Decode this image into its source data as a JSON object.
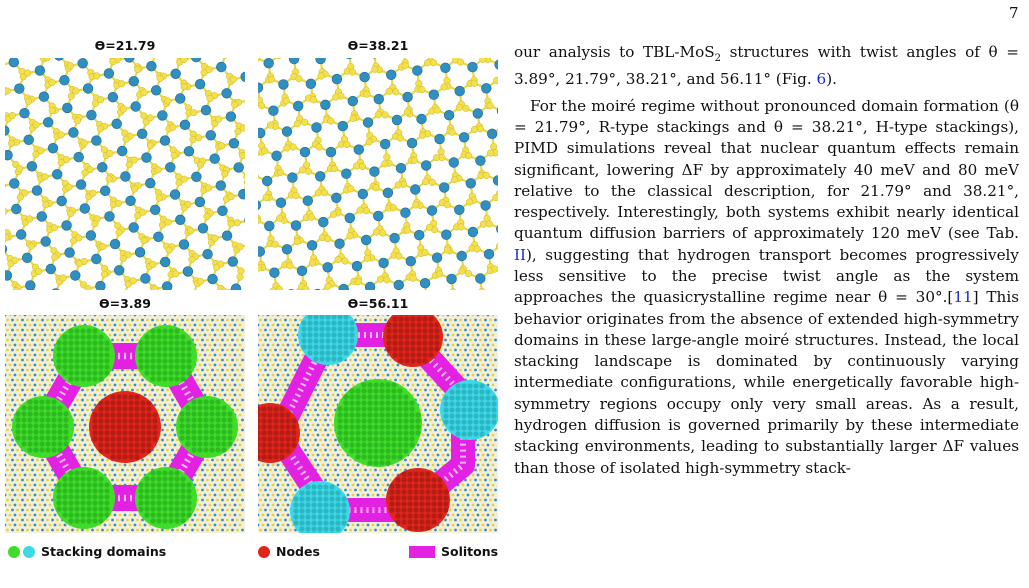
{
  "page_number": "7",
  "figure": {
    "panels": [
      {
        "title": "ϴ=21.79"
      },
      {
        "title": "ϴ=38.21"
      },
      {
        "title": "ϴ=3.89"
      },
      {
        "title": "ϴ=56.11"
      }
    ],
    "legend": {
      "stacking": "Stacking domains",
      "nodes": "Nodes",
      "solitons": "Solitons"
    },
    "colors": {
      "molybdenum": "#2f8fc0",
      "sulfur": "#f4e04a",
      "stacking_green": "#3fdc2a",
      "stacking_cyan": "#3ed8e6",
      "nodes_red": "#e0261b",
      "solitons_magenta": "#e221e2"
    }
  },
  "text": {
    "p1_a": "our analysis to TBL-MoS",
    "p1_sub": "2",
    "p1_b": " structures with twist angles of θ = 3.89°, 21.79°, 38.21°, and 56.11° (Fig. ",
    "p1_ref": "6",
    "p1_c": ").",
    "p2_a": "For the moiré regime without pronounced domain formation (θ = 21.79°, R-type stackings and θ = 38.21°, H-type stackings), PIMD simulations reveal that nuclear quantum effects remain significant, lowering ΔF by approximately 40 meV and 80 meV relative to the classical description, for 21.79° and 38.21°, respectively. Interestingly, both systems exhibit nearly identical quantum diffusion barriers of approximately 120 meV (see Tab. ",
    "p2_ref1": "II",
    "p2_b": "), suggesting that hydrogen transport becomes progressively less sensitive to the precise twist angle as the system approaches the quasicrystalline regime near θ = 30°.[",
    "p2_ref2": "11",
    "p2_c": "] This behavior originates from the absence of extended high-symmetry domains in these large-angle moiré structures. Instead, the local stacking landscape is dominated by continuously varying intermediate configurations, while energetically favorable high-symmetry regions occupy only very small areas. As a result, hydrogen diffusion is governed primarily by these intermediate stacking environments, leading to substantially larger ΔF values than those of isolated high-symmetry stack-"
  }
}
